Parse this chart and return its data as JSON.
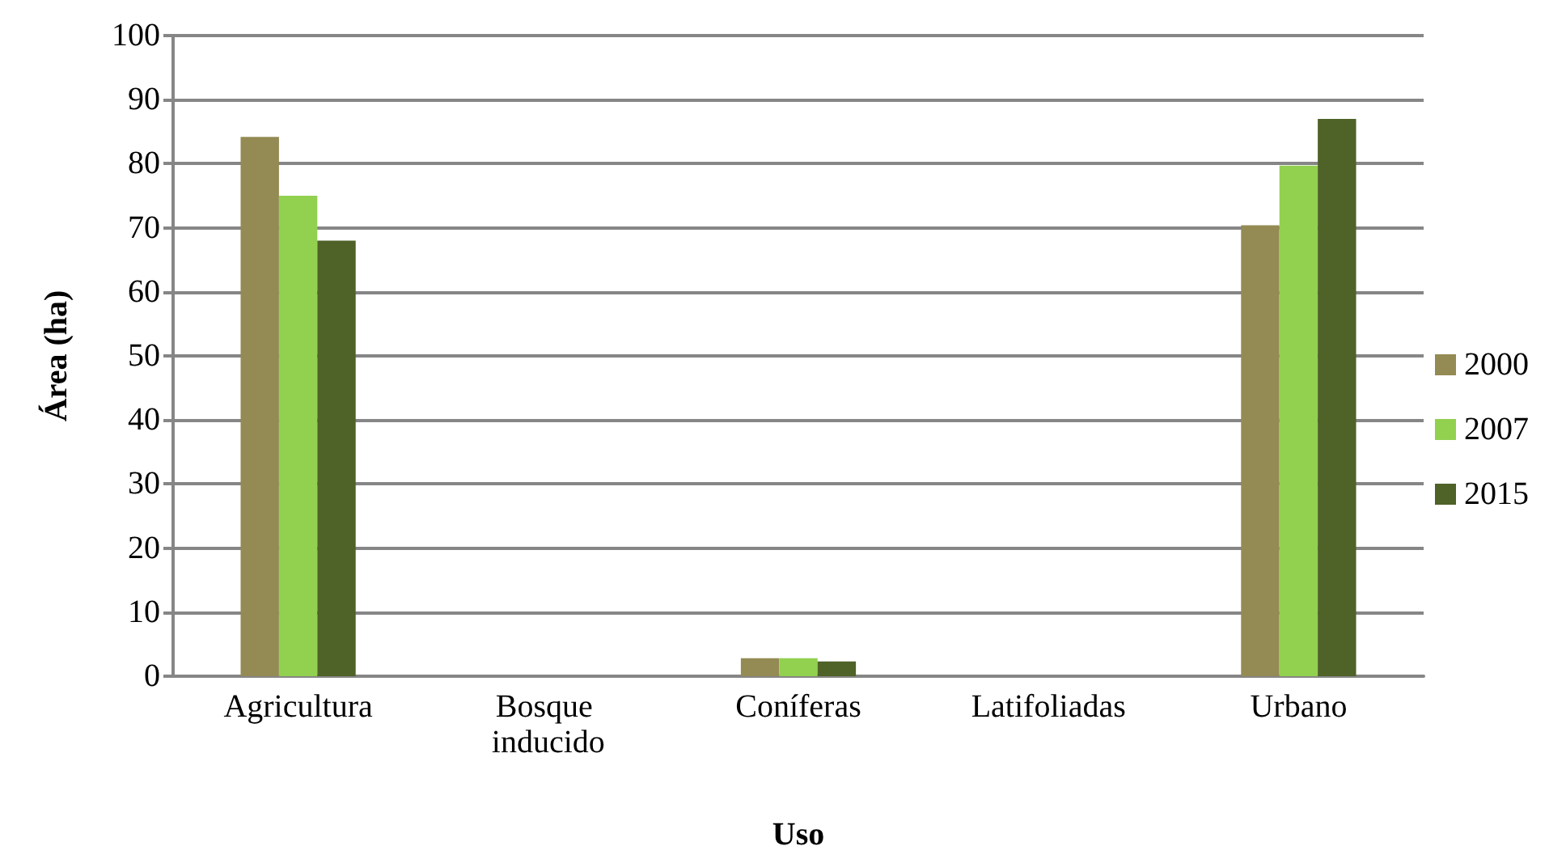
{
  "chart_data": {
    "type": "bar",
    "xlabel": "Uso",
    "ylabel": "Área (ha)",
    "categories": [
      "Agricultura",
      "Bosque inducido",
      "Coníferas",
      "Latifoliadas",
      "Urbano"
    ],
    "series": [
      {
        "name": "2000",
        "color": "#948a54",
        "values": [
          84.2,
          0,
          2.8,
          0,
          70.4
        ]
      },
      {
        "name": "2007",
        "color": "#92d050",
        "values": [
          75,
          0,
          2.8,
          0,
          79.7
        ]
      },
      {
        "name": "2015",
        "color": "#4f6228",
        "values": [
          68,
          0,
          2.3,
          0,
          87
        ]
      }
    ],
    "ylim": [
      0,
      100
    ],
    "yticks": [
      0,
      10,
      20,
      30,
      40,
      50,
      60,
      70,
      80,
      90,
      100
    ],
    "grid": "y",
    "legend": "right"
  }
}
